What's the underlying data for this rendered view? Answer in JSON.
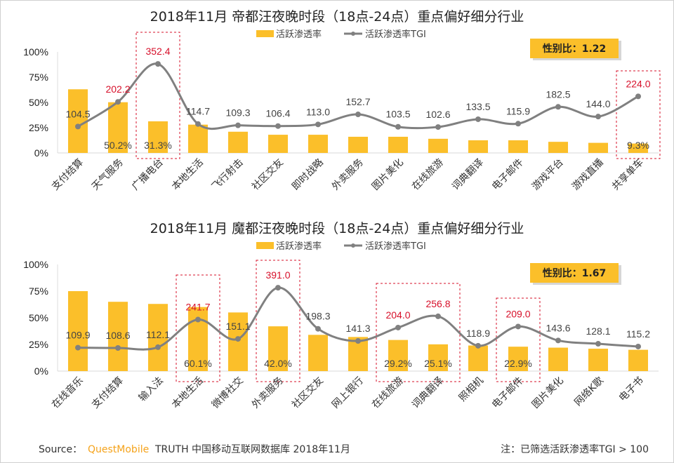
{
  "colors": {
    "bar": "#fbbf2a",
    "line": "#808080",
    "highlight": "#d7102a",
    "brand": "#f5a31b"
  },
  "chart_data": [
    {
      "type": "bar+line",
      "title": "2018年11月 帝都汪夜晚时段（18点-24点）重点偏好细分行业",
      "legend": [
        "活跃渗透率",
        "活跃渗透率TGI"
      ],
      "legend_position": "top",
      "badge": "性别比：1.22",
      "yticks": [
        "0%",
        "25%",
        "50%",
        "75%",
        "100%"
      ],
      "ylim": [
        0,
        100
      ],
      "y2lim": [
        0,
        400
      ],
      "grid": false,
      "categories": [
        "支付结算",
        "天气服务",
        "广播电台",
        "本地生活",
        "飞行射击",
        "社区交友",
        "即时战略",
        "外卖服务",
        "图片美化",
        "在线旅游",
        "词典翻译",
        "电子邮件",
        "游戏平台",
        "游戏直播",
        "共享单车"
      ],
      "series": [
        {
          "name": "活跃渗透率",
          "type": "bar",
          "values": [
            63,
            50.2,
            31.3,
            28,
            21,
            18,
            18,
            16,
            16,
            14,
            12.5,
            12.5,
            11,
            10,
            9.3
          ],
          "labels": [
            "",
            "50.2%",
            "31.3%",
            "",
            "",
            "",
            "",
            "",
            "",
            "",
            "",
            "",
            "",
            "",
            "9.3%"
          ]
        },
        {
          "name": "活跃渗透率TGI",
          "type": "line",
          "values": [
            104.5,
            202.2,
            352.4,
            114.7,
            109.3,
            106.4,
            113.0,
            152.7,
            103.5,
            102.6,
            133.5,
            115.9,
            182.5,
            144.0,
            224.0
          ],
          "labels": [
            "104.5",
            "202.2",
            "352.4",
            "114.7",
            "109.3",
            "106.4",
            "113.0",
            "152.7",
            "103.5",
            "102.6",
            "133.5",
            "115.9",
            "182.5",
            "144.0",
            "224.0"
          ],
          "highlighted": [
            1,
            2,
            14
          ]
        }
      ],
      "highlight_boxes": [
        [
          2,
          2
        ],
        [
          14,
          14
        ]
      ]
    },
    {
      "type": "bar+line",
      "title": "2018年11月 魔都汪夜晚时段（18点-24点）重点偏好细分行业",
      "legend": [
        "活跃渗透率",
        "活跃渗透率TGI"
      ],
      "legend_position": "top",
      "badge": "性别比：1.67",
      "yticks": [
        "0%",
        "25%",
        "50%",
        "75%",
        "100%"
      ],
      "ylim": [
        0,
        100
      ],
      "y2lim": [
        0,
        500
      ],
      "grid": false,
      "categories": [
        "在线音乐",
        "支付结算",
        "输入法",
        "本地生活",
        "微博社交",
        "外卖服务",
        "社区交友",
        "网上银行",
        "在线旅游",
        "词典翻译",
        "照相机",
        "电子邮件",
        "图片美化",
        "网络K歌",
        "电子书"
      ],
      "series": [
        {
          "name": "活跃渗透率",
          "type": "bar",
          "values": [
            75,
            65,
            63,
            60.1,
            55,
            42.0,
            34,
            32,
            29.2,
            25.1,
            24,
            22.9,
            22,
            21,
            20
          ],
          "labels": [
            "",
            "",
            "",
            "60.1%",
            "",
            "42.0%",
            "",
            "",
            "29.2%",
            "25.1%",
            "",
            "22.9%",
            "",
            "",
            ""
          ]
        },
        {
          "name": "活跃渗透率TGI",
          "type": "line",
          "values": [
            109.9,
            108.6,
            112.1,
            241.7,
            151.1,
            391.0,
            198.3,
            141.3,
            204.0,
            256.8,
            118.9,
            209.0,
            143.6,
            128.1,
            115.2
          ],
          "labels": [
            "109.9",
            "108.6",
            "112.1",
            "241.7",
            "151.1",
            "391.0",
            "198.3",
            "141.3",
            "204.0",
            "256.8",
            "118.9",
            "209.0",
            "143.6",
            "128.1",
            "115.2"
          ],
          "highlighted": [
            3,
            5,
            8,
            9,
            11
          ]
        }
      ],
      "highlight_boxes": [
        [
          3,
          3
        ],
        [
          5,
          5
        ],
        [
          8,
          9
        ],
        [
          11,
          11
        ]
      ]
    }
  ],
  "footer": {
    "source_label": "Source：",
    "brand": "QuestMobile",
    "source_text": "TRUTH 中国移动互联网数据库 2018年11月",
    "note": "注：已筛选活跃渗透率TGI > 100"
  }
}
